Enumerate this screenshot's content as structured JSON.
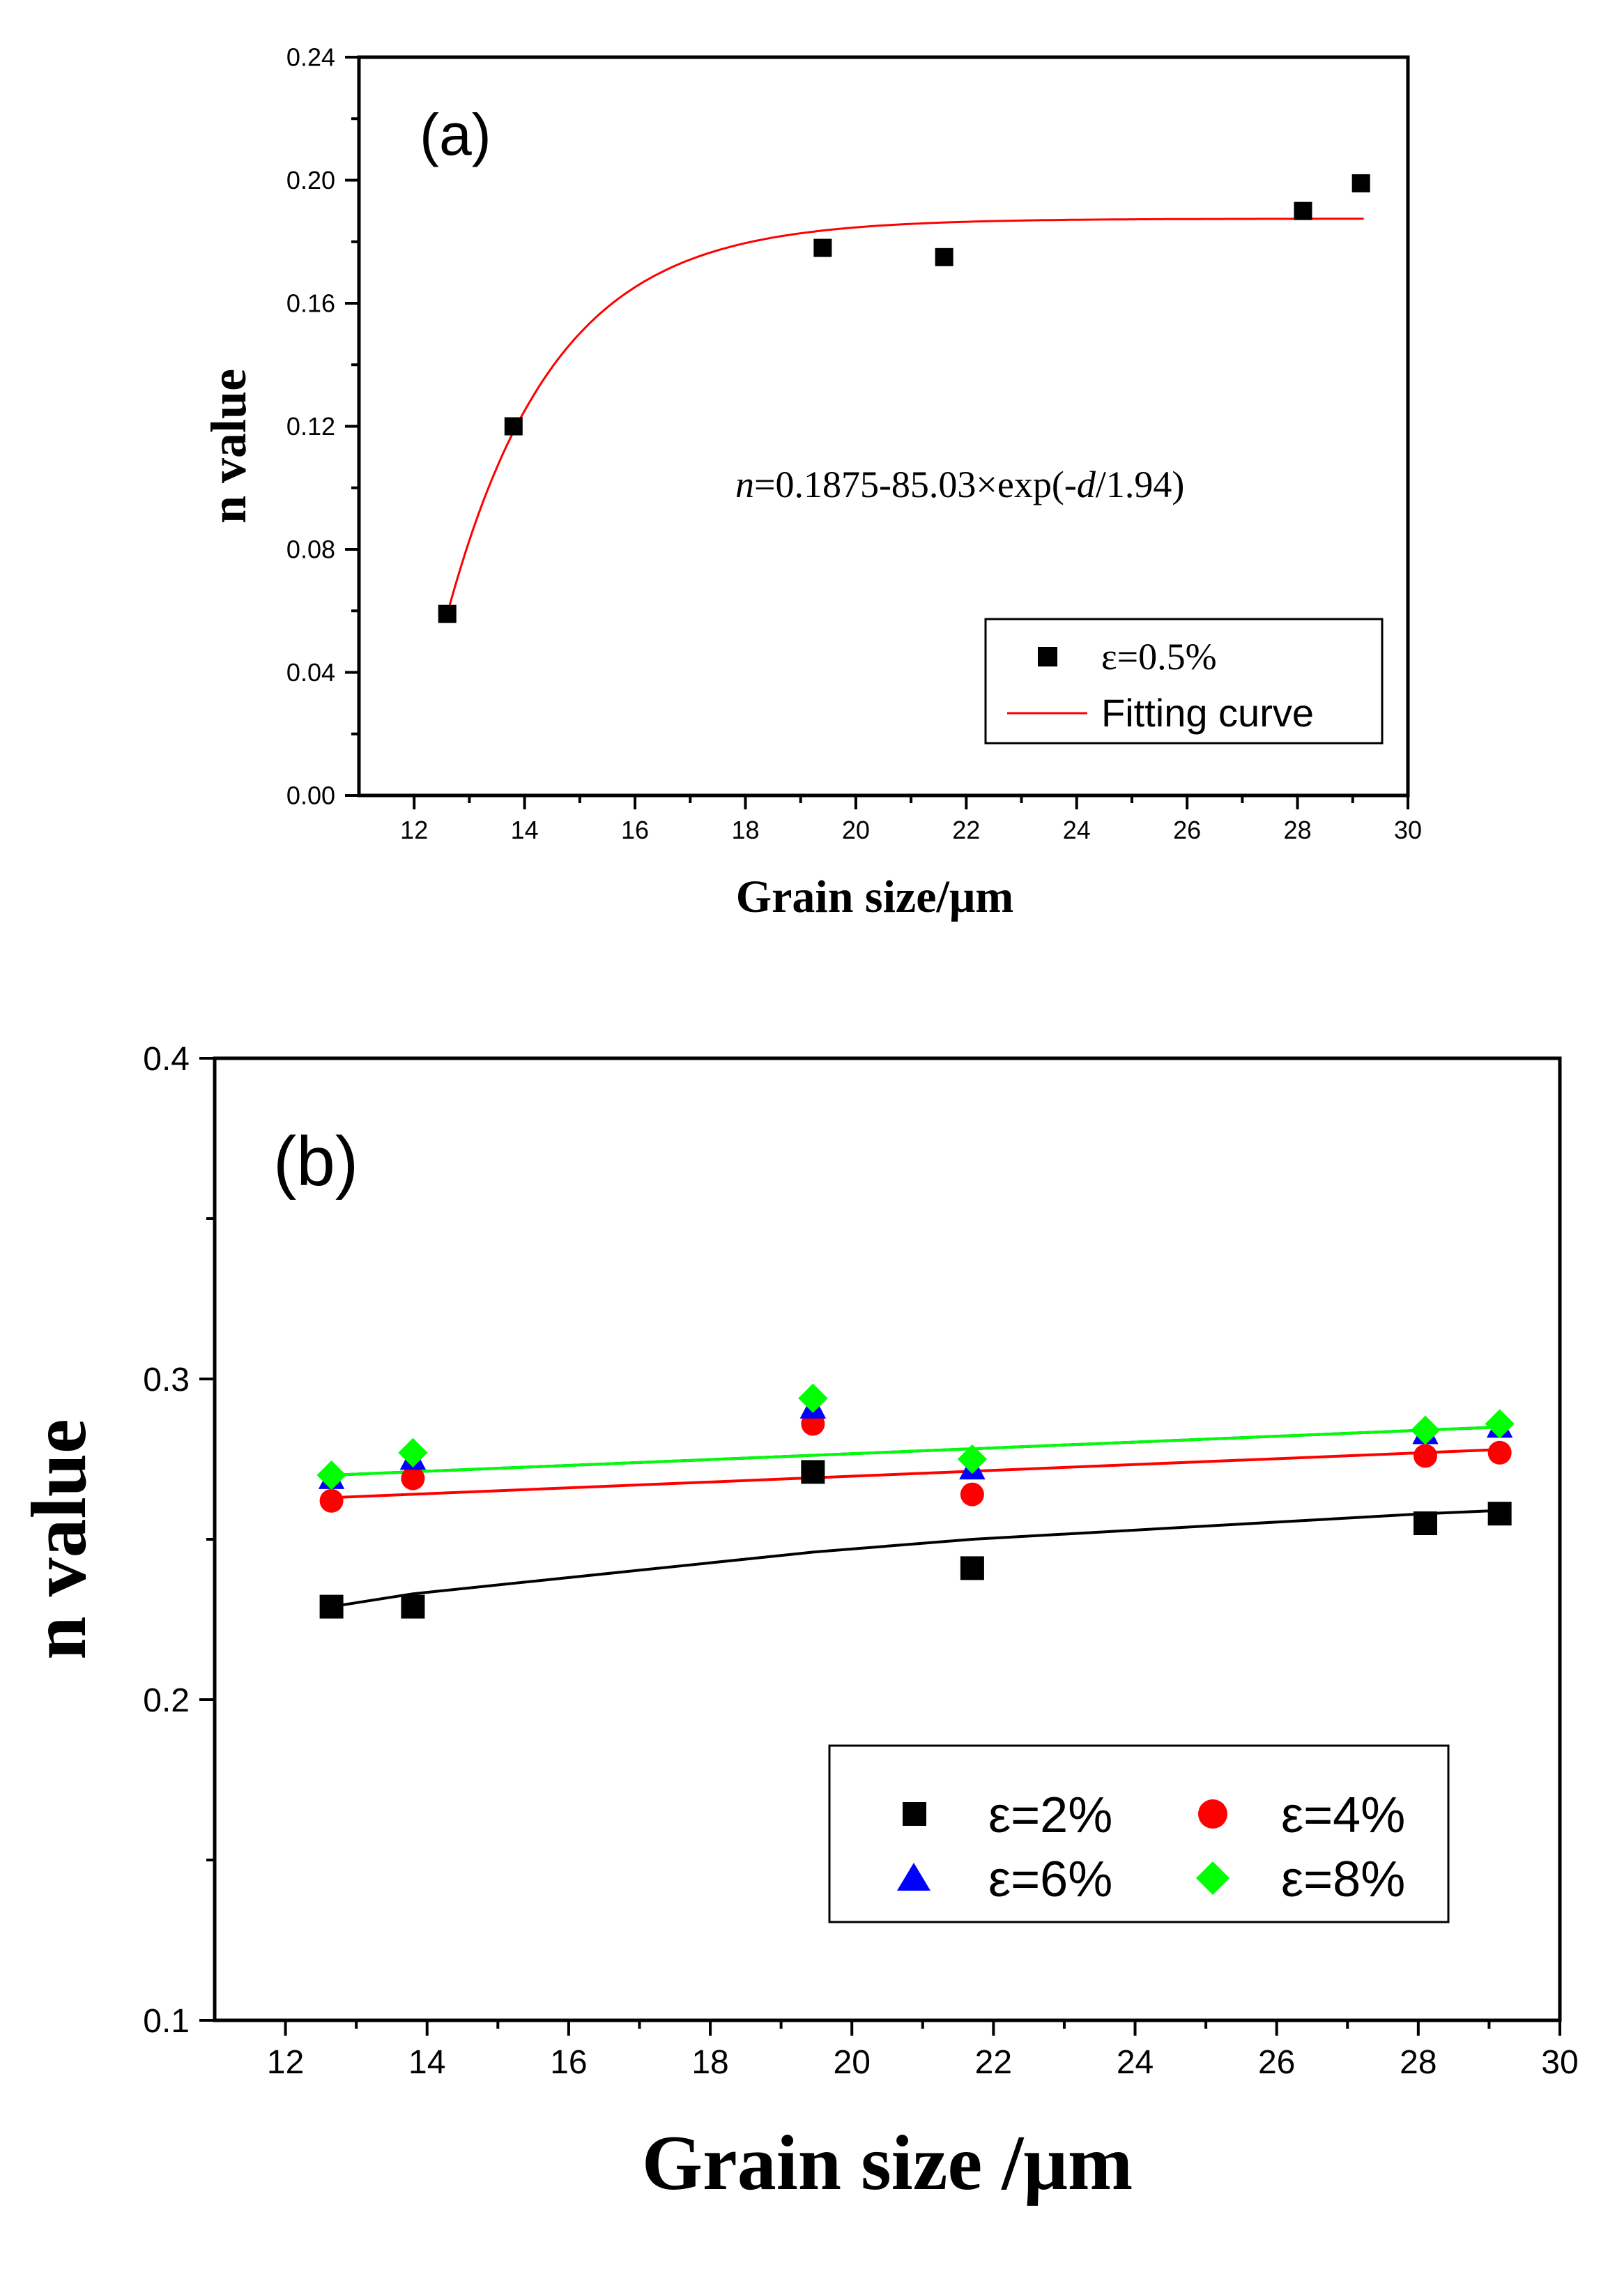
{
  "chart_data": [
    {
      "type": "scatter",
      "panel_label": "(a)",
      "xlabel": "Grain size/μm",
      "ylabel": "n value",
      "xlim": [
        11,
        30
      ],
      "ylim": [
        0,
        0.24
      ],
      "xticks": [
        12,
        14,
        16,
        18,
        20,
        22,
        24,
        26,
        28,
        30
      ],
      "yticks": [
        "0.00",
        "0.04",
        "0.08",
        "0.12",
        "0.16",
        "0.20",
        "0.24"
      ],
      "yminor": [
        0.02,
        0.06,
        0.1,
        0.14,
        0.18,
        0.22
      ],
      "xminor": [
        13,
        15,
        17,
        19,
        21,
        23,
        25,
        27,
        29
      ],
      "equation": {
        "n": "n",
        "part1": "=0.1875-85.03×exp(-",
        "d": "d",
        "part2": "/1.94)"
      },
      "legend_position": "bottom-right",
      "series": [
        {
          "name": "ε=0.5%",
          "marker": "square",
          "color": "#000000",
          "points": [
            [
              12.6,
              0.059
            ],
            [
              13.8,
              0.12
            ],
            [
              19.4,
              0.178
            ],
            [
              21.6,
              0.175
            ],
            [
              28.1,
              0.19
            ],
            [
              29.15,
              0.199
            ]
          ]
        },
        {
          "name": "Fitting curve",
          "marker": "line",
          "color": "#ff0000",
          "fit": {
            "a": 0.1875,
            "b": 85.03,
            "c": 1.94,
            "x_range": [
              12.6,
              29.2
            ]
          }
        }
      ]
    },
    {
      "type": "scatter",
      "panel_label": "(b)",
      "xlabel": "Grain size /μm",
      "ylabel": "n value",
      "xlim": [
        11,
        30
      ],
      "ylim": [
        0.1,
        0.4
      ],
      "xticks": [
        12,
        14,
        16,
        18,
        20,
        22,
        24,
        26,
        28,
        30
      ],
      "yticks": [
        "0.1",
        "0.2",
        "0.3",
        "0.4"
      ],
      "yminor": [
        0.15,
        0.25,
        0.35
      ],
      "xminor": [
        13,
        15,
        17,
        19,
        21,
        23,
        25,
        27,
        29
      ],
      "legend_position": "bottom-right",
      "x": [
        12.65,
        13.8,
        19.45,
        21.7,
        28.1,
        29.15
      ],
      "series": [
        {
          "name": "ε=2%",
          "marker": "square",
          "color": "#000000",
          "values": [
            0.229,
            0.229,
            0.271,
            0.241,
            0.255,
            0.258
          ],
          "fit": [
            [
              12.65,
              0.229
            ],
            [
              13.8,
              0.233
            ],
            [
              19.45,
              0.246
            ],
            [
              21.7,
              0.25
            ],
            [
              28.1,
              0.258
            ],
            [
              29.15,
              0.259
            ]
          ]
        },
        {
          "name": "ε=4%",
          "marker": "circle",
          "color": "#ff0000",
          "values": [
            0.262,
            0.269,
            0.286,
            0.264,
            0.276,
            0.277
          ],
          "fit": [
            [
              12.65,
              0.263
            ],
            [
              29.15,
              0.278
            ]
          ]
        },
        {
          "name": "ε=6%",
          "marker": "triangle",
          "color": "#0000ff",
          "values": [
            0.269,
            0.275,
            0.291,
            0.272,
            0.283,
            0.285
          ],
          "fit": [
            [
              12.65,
              0.27
            ],
            [
              29.15,
              0.285
            ]
          ]
        },
        {
          "name": "ε=8%",
          "marker": "diamond",
          "color": "#00ff00",
          "values": [
            0.27,
            0.277,
            0.294,
            0.275,
            0.284,
            0.286
          ],
          "fit": [
            [
              12.65,
              0.27
            ],
            [
              29.15,
              0.285
            ]
          ]
        }
      ]
    }
  ]
}
